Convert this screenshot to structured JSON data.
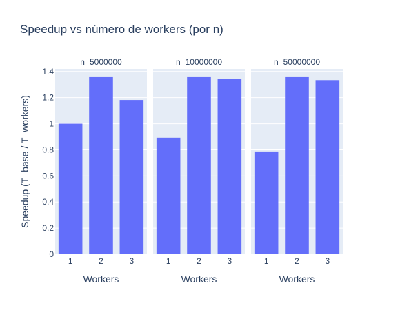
{
  "chart_data": {
    "type": "bar",
    "title": "Speedup vs número de workers (por n)",
    "ylabel": "Speedup (T_base / T_workers)",
    "ylim": [
      0,
      1.42
    ],
    "yticks": [
      0,
      0.2,
      0.4,
      0.6,
      0.8,
      1,
      1.2,
      1.4
    ],
    "grid": true,
    "bar_color": "#636efa",
    "plot_bg": "#e5ecf6",
    "panels": [
      {
        "label": "n=5000000",
        "xlabel": "Workers",
        "categories": [
          "1",
          "2",
          "3"
        ],
        "values": [
          1.0,
          1.357,
          1.182
        ]
      },
      {
        "label": "n=10000000",
        "xlabel": "Workers",
        "categories": [
          "1",
          "2",
          "3"
        ],
        "values": [
          0.893,
          1.357,
          1.346
        ]
      },
      {
        "label": "n=50000000",
        "xlabel": "Workers",
        "categories": [
          "1",
          "2",
          "3"
        ],
        "values": [
          0.787,
          1.357,
          1.334
        ]
      }
    ]
  }
}
